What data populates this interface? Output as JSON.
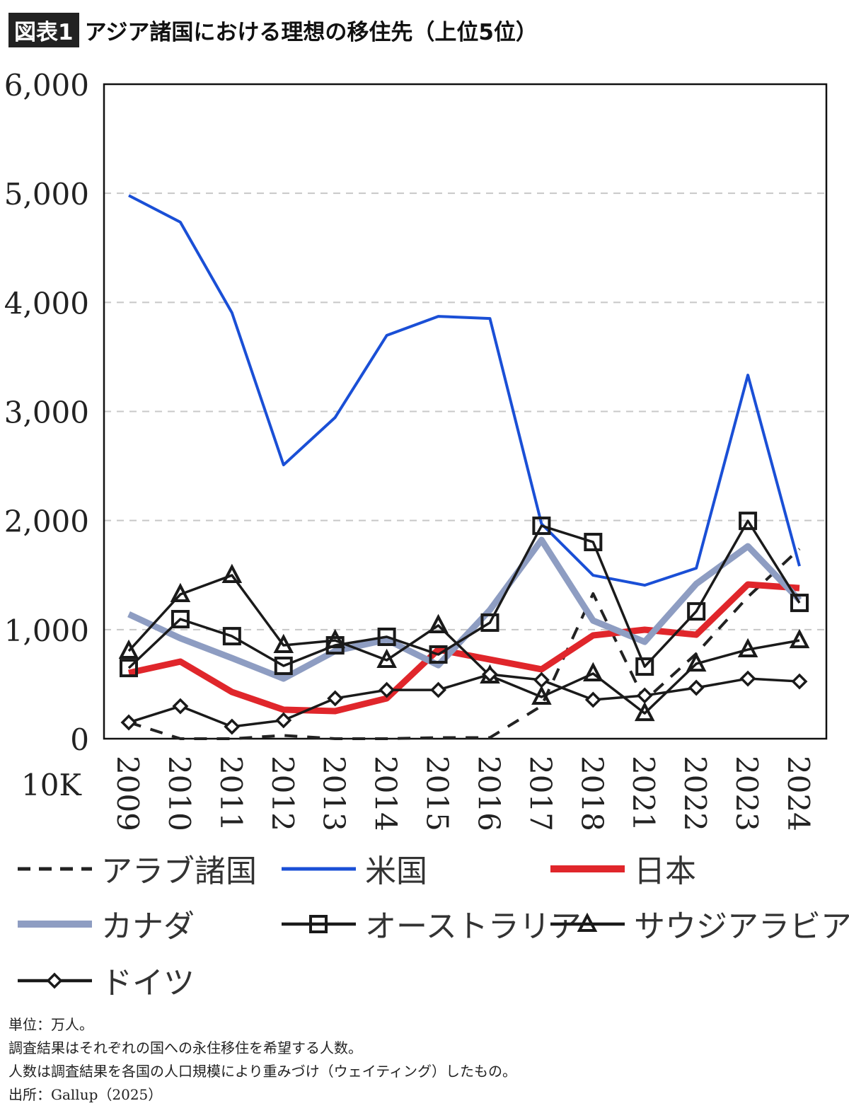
{
  "header": {
    "badge": "図表1",
    "title": "アジア諸国における理想の移住先（上位5位）"
  },
  "chart_data": {
    "type": "line",
    "title": "アジア諸国における理想の移住先（上位5位）",
    "categories": [
      "2009",
      "2010",
      "2011",
      "2012",
      "2013",
      "2014",
      "2015",
      "2016",
      "2017",
      "2018",
      "2021",
      "2022",
      "2023",
      "2024"
    ],
    "ylim": [
      0,
      6000
    ],
    "yticks": [
      "0",
      "1,000",
      "2,000",
      "3,000",
      "4,000",
      "5,000",
      "6,000"
    ],
    "ylabel": "10K",
    "grid": "horizontal dashed",
    "legend_placement": "bottom",
    "series": [
      {
        "name": "アラブ諸国",
        "color": "#222222",
        "style": "dashed",
        "marker": "none",
        "values": [
          150,
          0,
          0,
          30,
          0,
          0,
          10,
          10,
          300,
          1330,
          350,
          780,
          1300,
          1740
        ]
      },
      {
        "name": "米国",
        "color": "#1a4fd6",
        "style": "solid",
        "marker": "none",
        "values": [
          4980,
          4735,
          3905,
          2510,
          2945,
          3697,
          3872,
          3852,
          1970,
          1498,
          1407,
          1563,
          3333,
          1582
        ]
      },
      {
        "name": "日本",
        "color": "#e0262b",
        "style": "thick",
        "marker": "none",
        "values": [
          603,
          707,
          428,
          266,
          253,
          370,
          817,
          726,
          636,
          947,
          999,
          953,
          1414,
          1381
        ]
      },
      {
        "name": "カナダ",
        "color": "#8e9dc2",
        "style": "thick",
        "marker": "none",
        "values": [
          1141,
          921,
          739,
          551,
          804,
          908,
          674,
          1180,
          1822,
          1083,
          888,
          1420,
          1764,
          1271
        ]
      },
      {
        "name": "オーストラリア",
        "color": "#1a1a1a",
        "style": "solid",
        "marker": "square",
        "values": [
          648,
          1096,
          940,
          668,
          856,
          934,
          772,
          1064,
          1952,
          1803,
          661,
          1167,
          1997,
          1245
        ]
      },
      {
        "name": "サウジアラビア",
        "color": "#1a1a1a",
        "style": "solid",
        "marker": "triangle",
        "values": [
          804,
          1323,
          1498,
          856,
          901,
          720,
          1038,
          577,
          383,
          597,
          233,
          687,
          817,
          901
        ]
      },
      {
        "name": "ドイツ",
        "color": "#1a1a1a",
        "style": "solid",
        "marker": "diamond",
        "values": [
          149,
          298,
          110,
          169,
          370,
          447,
          447,
          590,
          538,
          357,
          396,
          467,
          551,
          525
        ]
      }
    ]
  },
  "notes": [
    "単位：万人。",
    "調査結果はそれぞれの国への永住移住を希望する人数。",
    "人数は調査結果を各国の人口規模により重みづけ（ウェイティング）したもの。",
    "出所：Gallup（2025）"
  ]
}
